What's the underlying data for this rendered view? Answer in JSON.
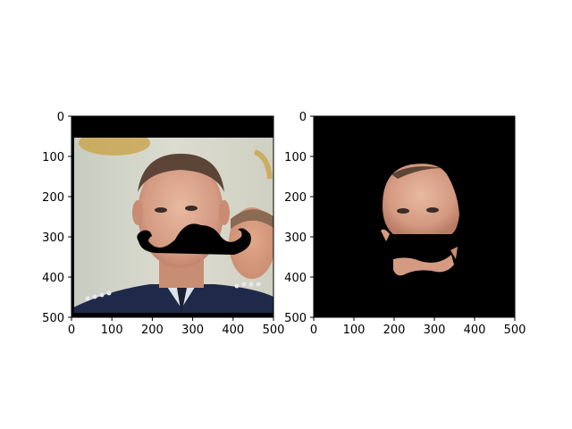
{
  "chart_data": [
    {
      "type": "image",
      "content": "photo of a man in a blue uniform with a black drawn mustache overlaid on his face; black bar across the top of the image",
      "xlim": [
        0,
        500
      ],
      "ylim": [
        500,
        0
      ],
      "xticks": [
        0,
        100,
        200,
        300,
        400,
        500
      ],
      "yticks": [
        0,
        100,
        200,
        300,
        400,
        500
      ],
      "xticklabels": [
        "0",
        "100",
        "200",
        "300",
        "400",
        "500"
      ],
      "yticklabels": [
        "0",
        "100",
        "200",
        "300",
        "400",
        "500"
      ],
      "grid": false
    },
    {
      "type": "image",
      "content": "segmented face region on black background; mustache region removed (black)",
      "xlim": [
        0,
        500
      ],
      "ylim": [
        500,
        0
      ],
      "xticks": [
        0,
        100,
        200,
        300,
        400,
        500
      ],
      "yticks": [
        0,
        100,
        200,
        300,
        400,
        500
      ],
      "xticklabels": [
        "0",
        "100",
        "200",
        "300",
        "400",
        "500"
      ],
      "yticklabels": [
        "0",
        "100",
        "200",
        "300",
        "400",
        "500"
      ],
      "grid": false
    }
  ]
}
